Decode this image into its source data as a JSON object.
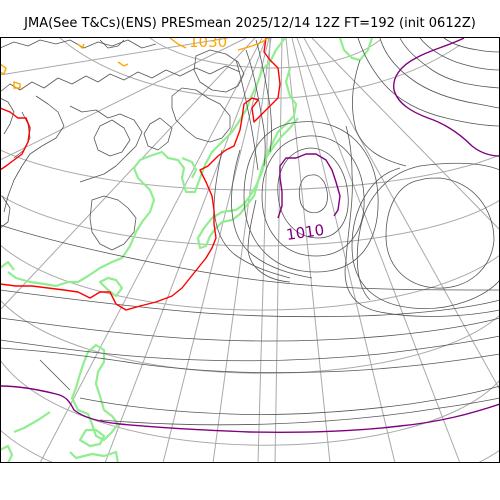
{
  "title": "JMA(See T&Cs)(ENS) PRESmean 2025/12/14 12Z FT=192 (init 0612Z)",
  "contour_labels": {
    "high": "1030",
    "low": "1010"
  },
  "colors": {
    "gridline": "#a9a9a9",
    "isobar": "#555555",
    "coastline": "#90ee90",
    "red_isobar": "#ff0000",
    "orange_isobar": "#ffa500",
    "purple_isobar": "#800080"
  }
}
